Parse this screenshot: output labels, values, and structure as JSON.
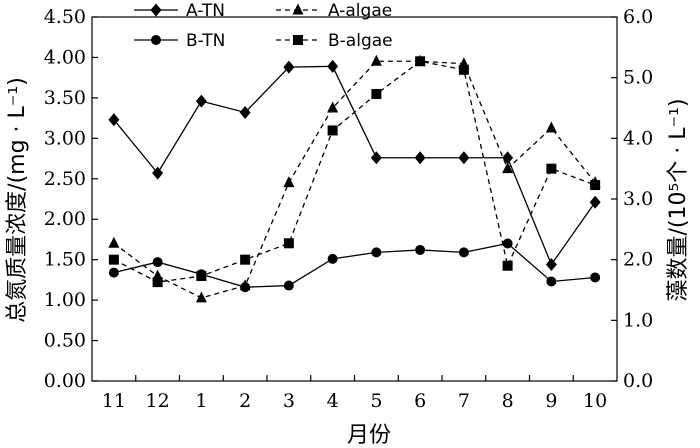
{
  "chart_data": {
    "type": "line",
    "categories": [
      "11",
      "12",
      "1",
      "2",
      "3",
      "4",
      "5",
      "6",
      "7",
      "8",
      "9",
      "10"
    ],
    "xlabel": "月份",
    "ylabel_left": "总氮质量浓度/(mg · L⁻¹)",
    "ylabel_right": "藻数量/(10⁵个 · L⁻¹)",
    "ylim_left": [
      0,
      4.5
    ],
    "ylim_right": [
      0,
      6
    ],
    "yticks_left": [
      "0.00",
      "0.50",
      "1.00",
      "1.50",
      "2.00",
      "2.50",
      "3.00",
      "3.50",
      "4.00",
      "4.50"
    ],
    "yticks_right": [
      "0.0",
      "1.0",
      "2.0",
      "3.0",
      "4.0",
      "5.0",
      "6.0"
    ],
    "grid": false,
    "legend_position": "top",
    "series": [
      {
        "name": "A-TN",
        "axis": "left",
        "marker": "diamond",
        "dash": "solid",
        "color": "#000000",
        "values": [
          3.23,
          2.57,
          3.46,
          3.32,
          3.88,
          3.89,
          2.76,
          2.76,
          2.76,
          2.76,
          1.44,
          2.21
        ]
      },
      {
        "name": "B-TN",
        "axis": "left",
        "marker": "circle",
        "dash": "solid",
        "color": "#000000",
        "values": [
          1.34,
          1.47,
          1.32,
          1.16,
          1.18,
          1.51,
          1.59,
          1.62,
          1.59,
          1.7,
          1.23,
          1.28
        ]
      },
      {
        "name": "A-algae",
        "axis": "right",
        "marker": "triangle",
        "dash": "dashed",
        "color": "#000000",
        "values": [
          2.27,
          1.73,
          1.37,
          1.57,
          3.27,
          4.5,
          5.27,
          5.27,
          5.23,
          3.5,
          4.17,
          3.27
        ]
      },
      {
        "name": "B-algae",
        "axis": "right",
        "marker": "square",
        "dash": "dashed",
        "color": "#000000",
        "values": [
          2.0,
          1.63,
          1.73,
          2.0,
          2.27,
          4.13,
          4.73,
          5.27,
          5.13,
          1.9,
          3.5,
          3.23
        ]
      }
    ]
  }
}
